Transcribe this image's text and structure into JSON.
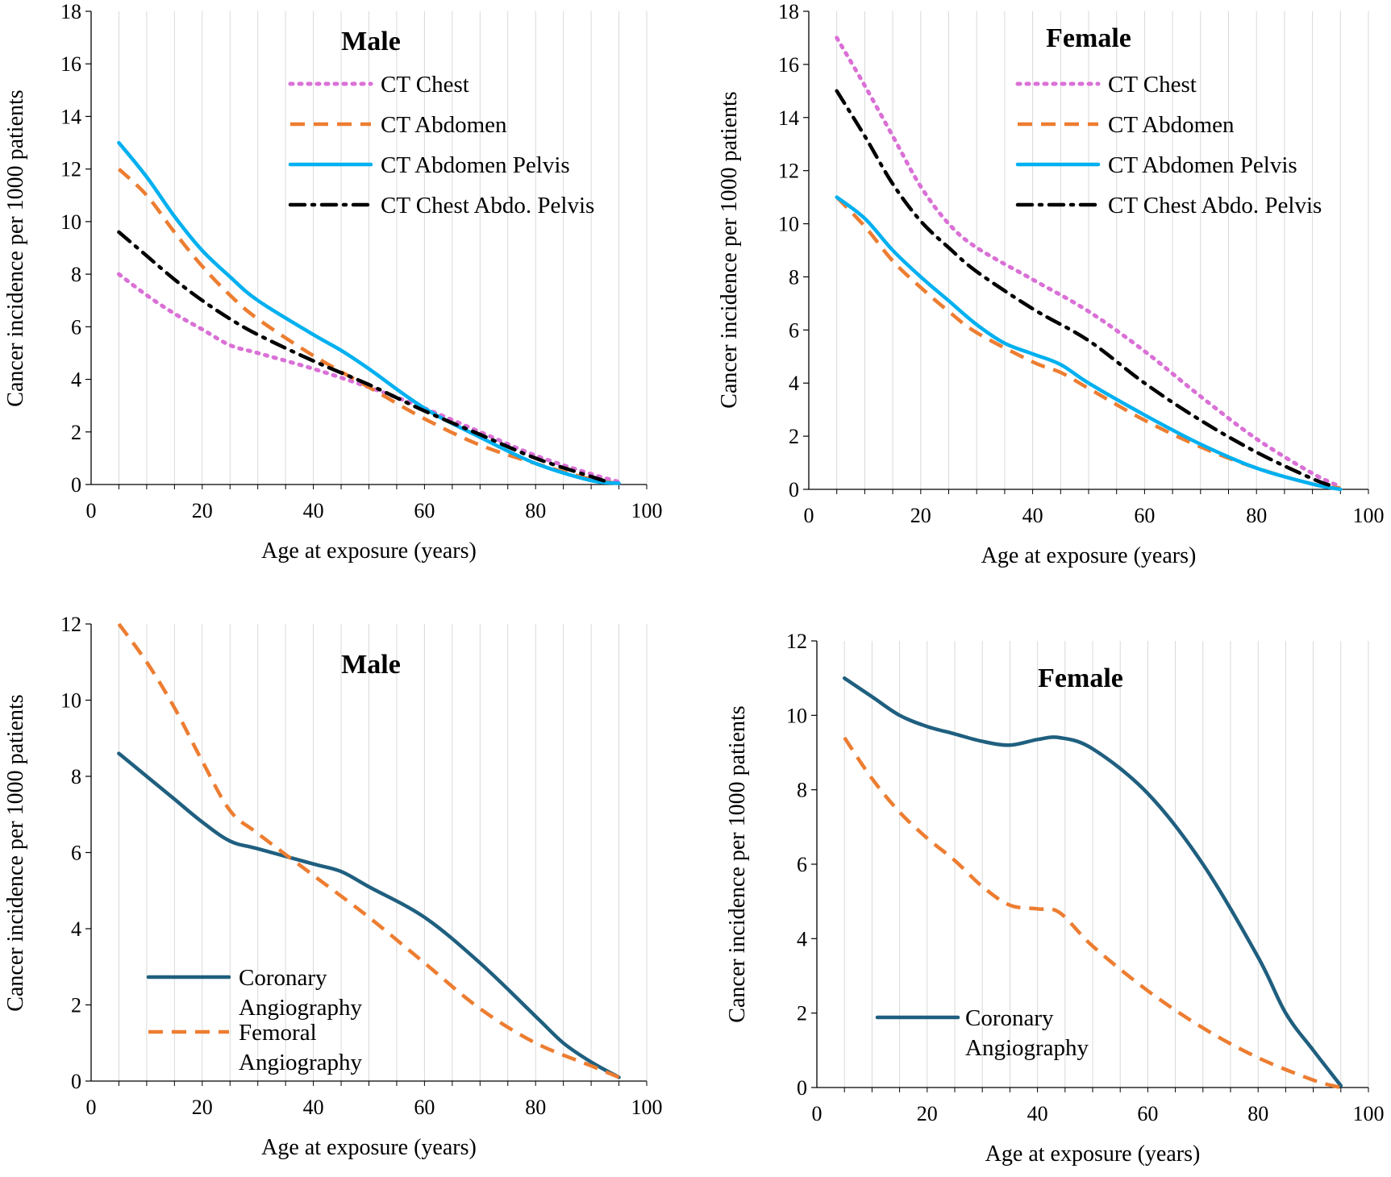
{
  "colors": {
    "ct_chest": "#DA70D6",
    "ct_abdomen": "#ED7D31",
    "ct_abdomen_pelvis": "#00B0F0",
    "ct_chest_abdo_pelvis": "#000000",
    "coronary": "#1F5F7F",
    "femoral": "#ED7D31",
    "grid": "#D9D9D9",
    "axis": "#000000"
  },
  "chart_data": [
    {
      "type": "line",
      "title": "Male",
      "xlabel": "Age at exposure (years)",
      "ylabel": "Cancer incidence per 1000 patients",
      "xlim": [
        0,
        100
      ],
      "ylim": [
        0,
        18
      ],
      "xticks": [
        0,
        20,
        40,
        60,
        80,
        100
      ],
      "yticks": [
        0,
        2,
        4,
        6,
        8,
        10,
        12,
        14,
        16,
        18
      ],
      "grid": true,
      "legend_position": "top-right",
      "series": [
        {
          "name": "CT Chest",
          "color_key": "ct_chest",
          "dash": "dot",
          "x": [
            5,
            10,
            15,
            20,
            25,
            30,
            40,
            50,
            60,
            70,
            80,
            90,
            95
          ],
          "y": [
            8,
            7.2,
            6.5,
            5.9,
            5.3,
            5,
            4.4,
            3.7,
            2.9,
            2,
            1.1,
            0.4,
            0.1
          ]
        },
        {
          "name": "CT Abdomen",
          "color_key": "ct_abdomen",
          "dash": "dash",
          "x": [
            5,
            10,
            15,
            20,
            25,
            30,
            40,
            50,
            60,
            70,
            80,
            90,
            95
          ],
          "y": [
            12,
            11,
            9.6,
            8.3,
            7.2,
            6.3,
            4.9,
            3.7,
            2.5,
            1.5,
            0.8,
            0.2,
            0.05
          ]
        },
        {
          "name": "CT Abdomen Pelvis",
          "color_key": "ct_abdomen_pelvis",
          "dash": "solid",
          "x": [
            5,
            10,
            15,
            20,
            25,
            30,
            40,
            45,
            50,
            60,
            70,
            80,
            90,
            95
          ],
          "y": [
            13,
            11.7,
            10.2,
            8.9,
            7.9,
            7,
            5.7,
            5.1,
            4.4,
            2.9,
            1.8,
            0.8,
            0.15,
            0.05
          ]
        },
        {
          "name": "CT Chest Abdo. Pelvis",
          "color_key": "ct_chest_abdo_pelvis",
          "dash": "dashdot",
          "x": [
            5,
            10,
            15,
            20,
            25,
            30,
            40,
            50,
            60,
            70,
            80,
            90,
            93
          ],
          "y": [
            9.6,
            8.7,
            7.8,
            7,
            6.3,
            5.7,
            4.7,
            3.8,
            2.8,
            1.9,
            1,
            0.3,
            0.1
          ]
        }
      ]
    },
    {
      "type": "line",
      "title": "Female",
      "xlabel": "Age at exposure (years)",
      "ylabel": "Cancer incidence per 1000 patients",
      "xlim": [
        0,
        100
      ],
      "ylim": [
        0,
        18
      ],
      "xticks": [
        0,
        20,
        40,
        60,
        80,
        100
      ],
      "yticks": [
        0,
        2,
        4,
        6,
        8,
        10,
        12,
        14,
        16,
        18
      ],
      "grid": true,
      "legend_position": "top-right",
      "series": [
        {
          "name": "CT Chest",
          "color_key": "ct_chest",
          "dash": "dot",
          "x": [
            5,
            10,
            15,
            20,
            25,
            30,
            40,
            50,
            60,
            70,
            80,
            90,
            95
          ],
          "y": [
            17,
            15.2,
            13.3,
            11.4,
            10,
            9.1,
            7.9,
            6.7,
            5.2,
            3.5,
            1.9,
            0.6,
            0.1
          ]
        },
        {
          "name": "CT Abdomen",
          "color_key": "ct_abdomen",
          "dash": "dash",
          "x": [
            5,
            10,
            15,
            20,
            25,
            30,
            40,
            45,
            50,
            60,
            70,
            80,
            90,
            95
          ],
          "y": [
            11,
            9.9,
            8.6,
            7.6,
            6.7,
            5.9,
            4.8,
            4.4,
            3.8,
            2.6,
            1.6,
            0.8,
            0.2,
            0.05
          ]
        },
        {
          "name": "CT Abdomen Pelvis",
          "color_key": "ct_abdomen_pelvis",
          "dash": "solid",
          "x": [
            5,
            10,
            15,
            20,
            25,
            30,
            35,
            40,
            45,
            50,
            60,
            70,
            80,
            90,
            95
          ],
          "y": [
            11,
            10.2,
            9,
            8,
            7.1,
            6.2,
            5.5,
            5.1,
            4.7,
            4,
            2.8,
            1.7,
            0.8,
            0.2,
            0
          ]
        },
        {
          "name": "CT Chest Abdo. Pelvis",
          "color_key": "ct_chest_abdo_pelvis",
          "dash": "dashdot",
          "x": [
            5,
            10,
            15,
            20,
            25,
            30,
            40,
            50,
            60,
            70,
            80,
            90,
            94
          ],
          "y": [
            15,
            13.3,
            11.5,
            10.1,
            9.1,
            8.2,
            6.8,
            5.6,
            4,
            2.6,
            1.4,
            0.4,
            0.1
          ]
        }
      ]
    },
    {
      "type": "line",
      "title": "Male",
      "xlabel": "Age at exposure (years)",
      "ylabel": "Cancer incidence per 1000 patients",
      "xlim": [
        0,
        100
      ],
      "ylim": [
        0,
        12
      ],
      "xticks": [
        0,
        20,
        40,
        60,
        80,
        100
      ],
      "yticks": [
        0,
        2,
        4,
        6,
        8,
        10,
        12
      ],
      "grid": true,
      "legend_position": "bottom-left",
      "series": [
        {
          "name": "Coronary Angiography",
          "name_lines": [
            "Coronary",
            "Angiography"
          ],
          "color_key": "coronary",
          "dash": "solid",
          "x": [
            5,
            10,
            15,
            20,
            25,
            30,
            40,
            45,
            50,
            60,
            70,
            80,
            85,
            90,
            95
          ],
          "y": [
            8.6,
            8,
            7.4,
            6.8,
            6.3,
            6.1,
            5.7,
            5.5,
            5.1,
            4.3,
            3.1,
            1.7,
            1,
            0.5,
            0.1
          ]
        },
        {
          "name": "Femoral Angiography",
          "name_lines": [
            "Femoral",
            "Angiography"
          ],
          "color_key": "femoral",
          "dash": "dash",
          "x": [
            5,
            10,
            15,
            20,
            25,
            30,
            40,
            50,
            60,
            70,
            80,
            90,
            95
          ],
          "y": [
            12,
            11,
            9.8,
            8.4,
            7.1,
            6.5,
            5.4,
            4.3,
            3.1,
            1.9,
            1,
            0.4,
            0.1
          ]
        }
      ]
    },
    {
      "type": "line",
      "title": "Female",
      "xlabel": "Age at exposure (years)",
      "ylabel": "Cancer incidence per 1000 patients",
      "xlim": [
        0,
        100
      ],
      "ylim": [
        0,
        12
      ],
      "xticks": [
        0,
        20,
        40,
        60,
        80,
        100
      ],
      "yticks": [
        0,
        2,
        4,
        6,
        8,
        10,
        12
      ],
      "grid": true,
      "legend_position": "bottom-left",
      "series": [
        {
          "name": "Coronary Angiography",
          "name_lines": [
            "Coronary",
            "Angiography"
          ],
          "color_key": "coronary",
          "dash": "solid",
          "x": [
            5,
            10,
            15,
            20,
            25,
            30,
            35,
            40,
            44,
            50,
            60,
            70,
            80,
            85,
            90,
            95
          ],
          "y": [
            11,
            10.5,
            10,
            9.7,
            9.5,
            9.3,
            9.2,
            9.35,
            9.4,
            9.1,
            7.9,
            6,
            3.5,
            2,
            1,
            0.05
          ]
        },
        {
          "name": "",
          "color_key": "femoral",
          "dash": "dash",
          "x": [
            5,
            10,
            15,
            20,
            25,
            30,
            35,
            40,
            44,
            50,
            60,
            70,
            80,
            90,
            95
          ],
          "y": [
            9.4,
            8.3,
            7.4,
            6.7,
            6.1,
            5.4,
            4.9,
            4.8,
            4.7,
            3.8,
            2.6,
            1.6,
            0.8,
            0.2,
            0
          ]
        }
      ]
    }
  ]
}
